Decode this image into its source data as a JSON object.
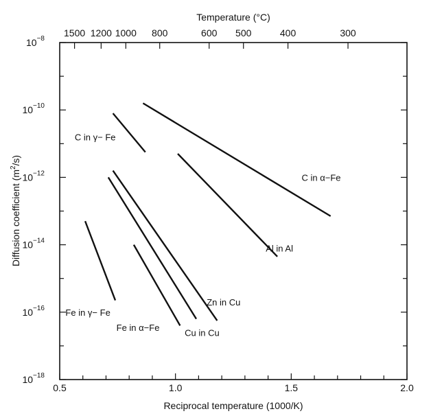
{
  "chart_data": {
    "type": "line",
    "title": "",
    "xlabel": "Reciprocal temperature (1000/K)",
    "ylabel": "Diffusion coefficient (m²/s)",
    "ylabel_main": "Diffusion coefficient (m",
    "ylabel_sup": "2",
    "ylabel_end": "/s)",
    "top_xlabel": "Temperature (°C)",
    "xlim": [
      0.5,
      2.0
    ],
    "ylim": [
      -18,
      -8
    ],
    "y_scale": "log",
    "grid": false,
    "x_ticks": [
      {
        "value": 0.5,
        "label": "0.5"
      },
      {
        "value": 1.0,
        "label": "1.0"
      },
      {
        "value": 1.5,
        "label": "1.5"
      },
      {
        "value": 2.0,
        "label": "2.0"
      }
    ],
    "x_minor_ticks": [
      0.6,
      0.7,
      0.8,
      0.9,
      1.1,
      1.2,
      1.3,
      1.4,
      1.6,
      1.7,
      1.8,
      1.9
    ],
    "top_ticks": [
      {
        "celsius": 1500,
        "label": "1500"
      },
      {
        "celsius": 1200,
        "label": "1200"
      },
      {
        "celsius": 1000,
        "label": "1000"
      },
      {
        "celsius": 800,
        "label": "800"
      },
      {
        "celsius": 600,
        "label": "600"
      },
      {
        "celsius": 500,
        "label": "500"
      },
      {
        "celsius": 400,
        "label": "400"
      },
      {
        "celsius": 300,
        "label": "300"
      }
    ],
    "y_ticks": [
      {
        "exp": -8,
        "base": "10",
        "sup": "−8"
      },
      {
        "exp": -10,
        "base": "10",
        "sup": "−10"
      },
      {
        "exp": -12,
        "base": "10",
        "sup": "−12"
      },
      {
        "exp": -14,
        "base": "10",
        "sup": "−14"
      },
      {
        "exp": -16,
        "base": "10",
        "sup": "−16"
      },
      {
        "exp": -18,
        "base": "10",
        "sup": "−18"
      }
    ],
    "y_minor_ticks": [
      -9,
      -11,
      -13,
      -15,
      -17
    ],
    "series": [
      {
        "name": "C in α−Fe",
        "label_text": "C in α−Fe",
        "label_at": [
          1.545,
          -12.0
        ],
        "x": [
          0.86,
          1.67
        ],
        "log10_y": [
          -9.8,
          -13.15
        ]
      },
      {
        "name": "C in γ−Fe",
        "label_text": "C in γ− Fe",
        "label_at": [
          0.565,
          -10.8
        ],
        "x": [
          0.73,
          0.87
        ],
        "log10_y": [
          -10.1,
          -11.25
        ]
      },
      {
        "name": "Al in Al",
        "label_text": "Al in Al",
        "label_at": [
          1.39,
          -14.1
        ],
        "x": [
          1.01,
          1.44
        ],
        "log10_y": [
          -11.3,
          -14.35
        ]
      },
      {
        "name": "Zn in Cu",
        "label_text": "Zn in Cu",
        "label_at": [
          1.135,
          -15.7
        ],
        "x": [
          0.73,
          1.18
        ],
        "log10_y": [
          -11.8,
          -16.25
        ]
      },
      {
        "name": "Cu in Cu",
        "label_text": "Cu in Cu",
        "label_at": [
          1.04,
          -16.6
        ],
        "x": [
          0.71,
          1.09
        ],
        "log10_y": [
          -12.0,
          -16.2
        ]
      },
      {
        "name": "Fe in γ−Fe",
        "label_text": "Fe in γ− Fe",
        "label_at": [
          0.525,
          -16.0
        ],
        "x": [
          0.61,
          0.74
        ],
        "log10_y": [
          -13.3,
          -15.65
        ]
      },
      {
        "name": "Fe in α−Fe",
        "label_text": "Fe in α−Fe",
        "label_at": [
          0.745,
          -16.45
        ],
        "x": [
          0.82,
          1.02
        ],
        "log10_y": [
          -14.0,
          -16.4
        ]
      }
    ]
  }
}
